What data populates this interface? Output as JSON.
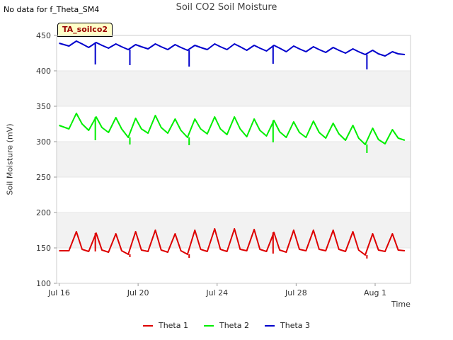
{
  "header": {
    "nodata": "No data for f_Theta_SM4",
    "badge": "TA_soilco2"
  },
  "legend": {
    "entries": [
      "Theta 1",
      "Theta 2",
      "Theta 3"
    ]
  },
  "chart_data": {
    "type": "line",
    "title": "Soil CO2 Soil Moisture",
    "xlabel": "Time",
    "ylabel": "Soil Moisture (mV)",
    "ylim": [
      100,
      450
    ],
    "yticks": [
      100,
      150,
      200,
      250,
      300,
      350,
      400,
      450
    ],
    "xticks": [
      "Jul 16",
      "Jul 20",
      "Jul 24",
      "Jul 28",
      "Aug 1"
    ],
    "xlim": [
      "2023-07-16",
      "2023-08-03"
    ],
    "grid": "alternating horizontal bands",
    "legend_position": "bottom",
    "series": [
      {
        "name": "Theta 1",
        "color": "#dd0000",
        "values": [
          [
            "2023-07-16 00:00",
            146
          ],
          [
            "2023-07-16 12:00",
            146
          ],
          [
            "2023-07-16 21:00",
            173
          ],
          [
            "2023-07-17 04:00",
            148
          ],
          [
            "2023-07-17 12:00",
            145
          ],
          [
            "2023-07-17 21:00",
            171
          ],
          [
            "2023-07-18 04:00",
            147
          ],
          [
            "2023-07-18 12:00",
            144
          ],
          [
            "2023-07-18 21:00",
            170
          ],
          [
            "2023-07-19 04:00",
            146
          ],
          [
            "2023-07-19 12:00",
            141
          ],
          [
            "2023-07-19 21:00",
            173
          ],
          [
            "2023-07-20 04:00",
            147
          ],
          [
            "2023-07-20 12:00",
            145
          ],
          [
            "2023-07-20 21:00",
            175
          ],
          [
            "2023-07-21 04:00",
            147
          ],
          [
            "2023-07-21 12:00",
            144
          ],
          [
            "2023-07-21 21:00",
            170
          ],
          [
            "2023-07-22 04:00",
            146
          ],
          [
            "2023-07-22 12:00",
            141
          ],
          [
            "2023-07-22 21:00",
            175
          ],
          [
            "2023-07-23 04:00",
            148
          ],
          [
            "2023-07-23 12:00",
            145
          ],
          [
            "2023-07-23 21:00",
            177
          ],
          [
            "2023-07-24 04:00",
            148
          ],
          [
            "2023-07-24 12:00",
            145
          ],
          [
            "2023-07-24 21:00",
            177
          ],
          [
            "2023-07-25 04:00",
            148
          ],
          [
            "2023-07-25 12:00",
            146
          ],
          [
            "2023-07-25 21:00",
            176
          ],
          [
            "2023-07-26 04:00",
            148
          ],
          [
            "2023-07-26 12:00",
            145
          ],
          [
            "2023-07-26 21:00",
            172
          ],
          [
            "2023-07-27 04:00",
            147
          ],
          [
            "2023-07-27 12:00",
            144
          ],
          [
            "2023-07-27 21:00",
            175
          ],
          [
            "2023-07-28 04:00",
            148
          ],
          [
            "2023-07-28 12:00",
            146
          ],
          [
            "2023-07-28 21:00",
            175
          ],
          [
            "2023-07-29 04:00",
            148
          ],
          [
            "2023-07-29 12:00",
            146
          ],
          [
            "2023-07-29 21:00",
            175
          ],
          [
            "2023-07-30 04:00",
            148
          ],
          [
            "2023-07-30 12:00",
            145
          ],
          [
            "2023-07-30 21:00",
            173
          ],
          [
            "2023-07-31 04:00",
            147
          ],
          [
            "2023-07-31 12:00",
            140
          ],
          [
            "2023-07-31 21:00",
            170
          ],
          [
            "2023-08-01 04:00",
            147
          ],
          [
            "2023-08-01 12:00",
            145
          ],
          [
            "2023-08-01 21:00",
            170
          ],
          [
            "2023-08-02 04:00",
            147
          ],
          [
            "2023-08-02 12:00",
            146
          ]
        ]
      },
      {
        "name": "Theta 2",
        "color": "#00ee00",
        "values": [
          [
            "2023-07-16 00:00",
            323
          ],
          [
            "2023-07-16 12:00",
            318
          ],
          [
            "2023-07-16 21:00",
            340
          ],
          [
            "2023-07-17 04:00",
            325
          ],
          [
            "2023-07-17 12:00",
            316
          ],
          [
            "2023-07-17 21:00",
            335
          ],
          [
            "2023-07-18 04:00",
            320
          ],
          [
            "2023-07-18 12:00",
            313
          ],
          [
            "2023-07-18 21:00",
            334
          ],
          [
            "2023-07-19 04:00",
            318
          ],
          [
            "2023-07-19 12:00",
            306
          ],
          [
            "2023-07-19 21:00",
            333
          ],
          [
            "2023-07-20 04:00",
            318
          ],
          [
            "2023-07-20 12:00",
            312
          ],
          [
            "2023-07-20 21:00",
            337
          ],
          [
            "2023-07-21 04:00",
            320
          ],
          [
            "2023-07-21 12:00",
            312
          ],
          [
            "2023-07-21 21:00",
            332
          ],
          [
            "2023-07-22 04:00",
            316
          ],
          [
            "2023-07-22 12:00",
            306
          ],
          [
            "2023-07-22 21:00",
            332
          ],
          [
            "2023-07-23 04:00",
            318
          ],
          [
            "2023-07-23 12:00",
            311
          ],
          [
            "2023-07-23 21:00",
            335
          ],
          [
            "2023-07-24 04:00",
            318
          ],
          [
            "2023-07-24 12:00",
            310
          ],
          [
            "2023-07-24 21:00",
            335
          ],
          [
            "2023-07-25 04:00",
            318
          ],
          [
            "2023-07-25 12:00",
            307
          ],
          [
            "2023-07-25 21:00",
            332
          ],
          [
            "2023-07-26 04:00",
            316
          ],
          [
            "2023-07-26 12:00",
            308
          ],
          [
            "2023-07-26 21:00",
            330
          ],
          [
            "2023-07-27 04:00",
            314
          ],
          [
            "2023-07-27 12:00",
            306
          ],
          [
            "2023-07-27 21:00",
            328
          ],
          [
            "2023-07-28 04:00",
            313
          ],
          [
            "2023-07-28 12:00",
            306
          ],
          [
            "2023-07-28 21:00",
            329
          ],
          [
            "2023-07-29 04:00",
            313
          ],
          [
            "2023-07-29 12:00",
            305
          ],
          [
            "2023-07-29 21:00",
            326
          ],
          [
            "2023-07-30 04:00",
            311
          ],
          [
            "2023-07-30 12:00",
            302
          ],
          [
            "2023-07-30 21:00",
            323
          ],
          [
            "2023-07-31 04:00",
            305
          ],
          [
            "2023-07-31 12:00",
            296
          ],
          [
            "2023-07-31 21:00",
            319
          ],
          [
            "2023-08-01 04:00",
            303
          ],
          [
            "2023-08-01 12:00",
            297
          ],
          [
            "2023-08-01 21:00",
            317
          ],
          [
            "2023-08-02 04:00",
            305
          ],
          [
            "2023-08-02 12:00",
            302
          ]
        ]
      },
      {
        "name": "Theta 3",
        "color": "#0000cc",
        "values": [
          [
            "2023-07-16 00:00",
            439
          ],
          [
            "2023-07-16 12:00",
            435
          ],
          [
            "2023-07-16 21:00",
            442
          ],
          [
            "2023-07-17 04:00",
            438
          ],
          [
            "2023-07-17 12:00",
            433
          ],
          [
            "2023-07-17 21:00",
            440
          ],
          [
            "2023-07-18 04:00",
            436
          ],
          [
            "2023-07-18 12:00",
            432
          ],
          [
            "2023-07-18 21:00",
            438
          ],
          [
            "2023-07-19 04:00",
            434
          ],
          [
            "2023-07-19 12:00",
            430
          ],
          [
            "2023-07-19 21:00",
            437
          ],
          [
            "2023-07-20 04:00",
            434
          ],
          [
            "2023-07-20 12:00",
            431
          ],
          [
            "2023-07-20 21:00",
            438
          ],
          [
            "2023-07-21 04:00",
            434
          ],
          [
            "2023-07-21 12:00",
            430
          ],
          [
            "2023-07-21 21:00",
            437
          ],
          [
            "2023-07-22 04:00",
            433
          ],
          [
            "2023-07-22 12:00",
            429
          ],
          [
            "2023-07-22 21:00",
            436
          ],
          [
            "2023-07-23 04:00",
            433
          ],
          [
            "2023-07-23 12:00",
            430
          ],
          [
            "2023-07-23 21:00",
            438
          ],
          [
            "2023-07-24 04:00",
            434
          ],
          [
            "2023-07-24 12:00",
            430
          ],
          [
            "2023-07-24 21:00",
            438
          ],
          [
            "2023-07-25 04:00",
            434
          ],
          [
            "2023-07-25 12:00",
            429
          ],
          [
            "2023-07-25 21:00",
            436
          ],
          [
            "2023-07-26 04:00",
            432
          ],
          [
            "2023-07-26 12:00",
            428
          ],
          [
            "2023-07-26 21:00",
            436
          ],
          [
            "2023-07-27 04:00",
            432
          ],
          [
            "2023-07-27 12:00",
            427
          ],
          [
            "2023-07-27 21:00",
            435
          ],
          [
            "2023-07-28 04:00",
            431
          ],
          [
            "2023-07-28 12:00",
            427
          ],
          [
            "2023-07-28 21:00",
            434
          ],
          [
            "2023-07-29 04:00",
            430
          ],
          [
            "2023-07-29 12:00",
            426
          ],
          [
            "2023-07-29 21:00",
            433
          ],
          [
            "2023-07-30 04:00",
            429
          ],
          [
            "2023-07-30 12:00",
            425
          ],
          [
            "2023-07-30 21:00",
            431
          ],
          [
            "2023-07-31 04:00",
            427
          ],
          [
            "2023-07-31 12:00",
            423
          ],
          [
            "2023-07-31 21:00",
            429
          ],
          [
            "2023-08-01 04:00",
            424
          ],
          [
            "2023-08-01 12:00",
            421
          ],
          [
            "2023-08-01 21:00",
            427
          ],
          [
            "2023-08-02 04:00",
            424
          ],
          [
            "2023-08-02 12:00",
            423
          ]
        ]
      }
    ],
    "spikes": [
      {
        "series": "Theta 3",
        "x": "2023-07-17 20:00",
        "y": 409
      },
      {
        "series": "Theta 3",
        "x": "2023-07-19 14:00",
        "y": 408
      },
      {
        "series": "Theta 3",
        "x": "2023-07-22 14:00",
        "y": 406
      },
      {
        "series": "Theta 3",
        "x": "2023-07-26 20:00",
        "y": 410
      },
      {
        "series": "Theta 3",
        "x": "2023-07-31 14:00",
        "y": 402
      },
      {
        "series": "Theta 2",
        "x": "2023-07-17 20:00",
        "y": 302
      },
      {
        "series": "Theta 2",
        "x": "2023-07-19 14:00",
        "y": 296
      },
      {
        "series": "Theta 2",
        "x": "2023-07-22 14:00",
        "y": 295
      },
      {
        "series": "Theta 2",
        "x": "2023-07-26 20:00",
        "y": 299
      },
      {
        "series": "Theta 2",
        "x": "2023-07-31 14:00",
        "y": 284
      },
      {
        "series": "Theta 1",
        "x": "2023-07-17 20:00",
        "y": 145
      },
      {
        "series": "Theta 1",
        "x": "2023-07-19 14:00",
        "y": 137
      },
      {
        "series": "Theta 1",
        "x": "2023-07-22 14:00",
        "y": 136
      },
      {
        "series": "Theta 1",
        "x": "2023-07-26 20:00",
        "y": 142
      },
      {
        "series": "Theta 1",
        "x": "2023-07-31 14:00",
        "y": 135
      }
    ]
  }
}
